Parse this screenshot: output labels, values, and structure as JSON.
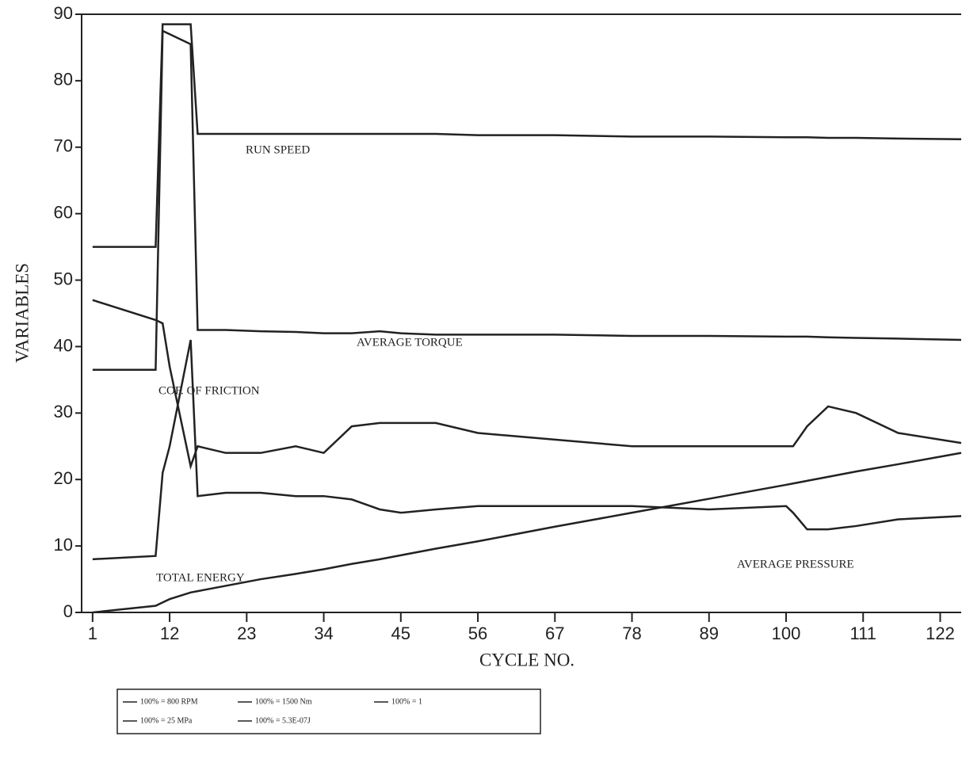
{
  "chart_data": {
    "type": "line",
    "xlabel": "CYCLE NO.",
    "ylabel": "VARIABLES",
    "annotations": [
      "RUN SPEED",
      "AVERAGE TORQUE",
      "COF. OF FRICTION",
      "AVERAGE PRESSURE",
      "TOTAL ENERGY"
    ],
    "x": [
      1,
      10,
      11,
      12,
      15,
      16,
      20,
      25,
      30,
      34,
      38,
      42,
      45,
      50,
      56,
      67,
      78,
      89,
      100,
      101,
      103,
      106,
      110,
      116,
      125
    ],
    "series": [
      {
        "name": "100% = 800 RPM",
        "color": "#222222",
        "values": [
          55,
          55,
          88.5,
          88.5,
          88.5,
          72,
          72,
          72,
          72,
          72,
          72,
          72,
          72,
          72,
          71.8,
          71.8,
          71.6,
          71.6,
          71.5,
          71.5,
          71.5,
          71.4,
          71.4,
          71.3,
          71.2
        ]
      },
      {
        "name": "100% = 1500 Nm",
        "color": "#222222",
        "values": [
          36.5,
          36.5,
          87.5,
          87,
          85.5,
          42.5,
          42.5,
          42.3,
          42.2,
          42,
          42,
          42.3,
          42,
          41.8,
          41.8,
          41.8,
          41.6,
          41.6,
          41.5,
          41.5,
          41.5,
          41.4,
          41.3,
          41.2,
          41
        ]
      },
      {
        "name": "100% = 1",
        "color": "#222222",
        "values": [
          47,
          44,
          43.5,
          37,
          22,
          25,
          24,
          24,
          25,
          24,
          28,
          28.5,
          28.5,
          28.5,
          27,
          26,
          25,
          25,
          25,
          25,
          28,
          31,
          30,
          27,
          25.5
        ]
      },
      {
        "name": "100% = 25 MPa",
        "color": "#222222",
        "values": [
          8,
          8.5,
          21,
          25,
          41,
          17.5,
          18,
          18,
          17.5,
          17.5,
          17,
          15.5,
          15,
          15.5,
          16,
          16,
          16,
          15.5,
          16,
          15,
          12.5,
          12.5,
          13,
          14,
          14.5
        ]
      },
      {
        "name": "100% = 5.3E-07J",
        "color": "#222222",
        "values": [
          0,
          1,
          1.5,
          2,
          3,
          3.2,
          4,
          5,
          5.8,
          6.5,
          7.3,
          8,
          8.6,
          9.6,
          10.7,
          12.9,
          15,
          17.1,
          19.2,
          19.4,
          19.8,
          20.4,
          21.2,
          22.3,
          24
        ]
      }
    ],
    "xlim": [
      0,
      125
    ],
    "xticks": [
      1,
      12,
      23,
      34,
      45,
      56,
      67,
      78,
      89,
      100,
      111,
      122
    ],
    "ylim": [
      0,
      90
    ],
    "yticks": [
      0,
      10,
      20,
      30,
      40,
      50,
      60,
      70,
      80,
      90
    ]
  }
}
